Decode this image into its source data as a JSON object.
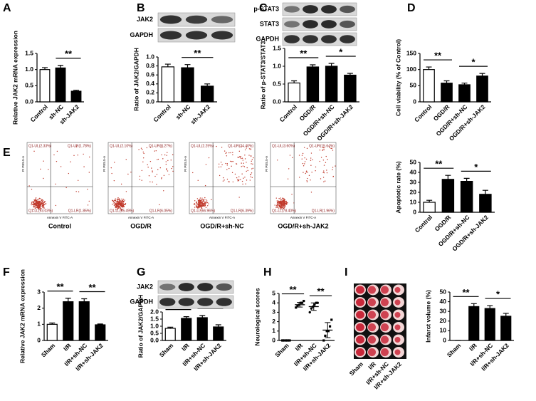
{
  "chart_data": [
    {
      "type": "bar",
      "panel": "A",
      "ylabel": "Relative JAK2 mRNA expression",
      "categories": [
        "Control",
        "sh-NC",
        "sh-JAK2"
      ],
      "values": [
        1.0,
        1.05,
        0.33
      ],
      "errors": [
        0.06,
        0.08,
        0.03
      ],
      "colors": [
        "#ffffff",
        "#000000",
        "#000000"
      ],
      "ylim": [
        0,
        1.5
      ],
      "yticks": [
        {
          "value": 0,
          "label": "0.0"
        },
        {
          "value": 0.5,
          "label": "0.5"
        },
        {
          "value": 1,
          "label": "1.0"
        },
        {
          "value": 1.5,
          "label": "1.5"
        }
      ],
      "significance": [
        {
          "label": "**",
          "between": [
            "sh-NC",
            "sh-JAK2"
          ]
        }
      ]
    },
    {
      "type": "bar",
      "panel": "B",
      "ylabel": "Ratio of JAK2/GAPDH",
      "categories": [
        "Control",
        "sh-NC",
        "sh-JAK2"
      ],
      "values": [
        0.78,
        0.76,
        0.35
      ],
      "errors": [
        0.06,
        0.07,
        0.05
      ],
      "colors": [
        "#ffffff",
        "#000000",
        "#000000"
      ],
      "ylim": [
        0,
        1
      ],
      "yticks": [
        {
          "value": 0,
          "label": "0.0"
        },
        {
          "value": 0.2,
          "label": "0.2"
        },
        {
          "value": 0.4,
          "label": "0.4"
        },
        {
          "value": 0.6,
          "label": "0.6"
        },
        {
          "value": 0.8,
          "label": "0.8"
        },
        {
          "value": 1,
          "label": "1.0"
        }
      ],
      "significance": [
        {
          "label": "**",
          "between": [
            "sh-NC",
            "sh-JAK2"
          ]
        }
      ]
    },
    {
      "type": "bar",
      "panel": "C",
      "ylabel": "Ratio of p-STAT3/STAT3",
      "categories": [
        "Control",
        "OGD/R",
        "OGD/R+sh-NC",
        "OGD/R+sh-JAK2"
      ],
      "values": [
        0.53,
        0.98,
        1.0,
        0.75
      ],
      "errors": [
        0.06,
        0.06,
        0.08,
        0.05
      ],
      "colors": [
        "#ffffff",
        "#000000",
        "#000000",
        "#000000"
      ],
      "ylim": [
        0,
        1.5
      ],
      "yticks": [
        {
          "value": 0,
          "label": "0.0"
        },
        {
          "value": 0.5,
          "label": "0.5"
        },
        {
          "value": 1,
          "label": "1.0"
        },
        {
          "value": 1.5,
          "label": "1.5"
        }
      ],
      "significance": [
        {
          "label": "**",
          "between": [
            "Control",
            "OGD/R"
          ]
        },
        {
          "label": "*",
          "between": [
            "OGD/R+sh-NC",
            "OGD/R+sh-JAK2"
          ]
        }
      ]
    },
    {
      "type": "bar",
      "panel": "D",
      "ylabel": "Cell viability (% of Control)",
      "categories": [
        "Control",
        "OGD/R",
        "OGD/R+sh-NC",
        "OGD/R+sh-JAK2"
      ],
      "values": [
        100,
        58,
        53,
        80
      ],
      "errors": [
        8,
        7,
        5,
        8
      ],
      "colors": [
        "#ffffff",
        "#000000",
        "#000000",
        "#000000"
      ],
      "ylim": [
        0,
        150
      ],
      "yticks": [
        0,
        50,
        100,
        150
      ],
      "significance": [
        {
          "label": "**",
          "between": [
            "Control",
            "OGD/R"
          ]
        },
        {
          "label": "*",
          "between": [
            "OGD/R+sh-NC",
            "OGD/R+sh-JAK2"
          ]
        }
      ]
    },
    {
      "type": "bar",
      "panel": "E",
      "ylabel": "Apoptotic rate (%)",
      "categories": [
        "Control",
        "OGD/R",
        "OGD/R+sh-NC",
        "OGD/R+sh-JAK2"
      ],
      "values": [
        10,
        33,
        31,
        18
      ],
      "errors": [
        2,
        4,
        3,
        4
      ],
      "colors": [
        "#ffffff",
        "#000000",
        "#000000",
        "#000000"
      ],
      "ylim": [
        0,
        50
      ],
      "yticks": [
        0,
        10,
        20,
        30,
        40,
        50
      ],
      "significance": [
        {
          "label": "**",
          "between": [
            "Control",
            "OGD/R"
          ]
        },
        {
          "label": "*",
          "between": [
            "OGD/R+sh-NC",
            "OGD/R+sh-JAK2"
          ]
        }
      ]
    },
    {
      "type": "bar",
      "panel": "F",
      "ylabel": "Relative JAK2 mRNA expression",
      "categories": [
        "Sham",
        "I/R",
        "I/R+sh-NC",
        "I/R+sh-JAK2"
      ],
      "values": [
        1.0,
        2.4,
        2.4,
        0.97
      ],
      "errors": [
        0.08,
        0.22,
        0.18,
        0.05
      ],
      "colors": [
        "#ffffff",
        "#000000",
        "#000000",
        "#000000"
      ],
      "ylim": [
        0,
        3
      ],
      "yticks": [
        0,
        1,
        2,
        3
      ],
      "significance": [
        {
          "label": "**",
          "between": [
            "Sham",
            "I/R"
          ]
        },
        {
          "label": "**",
          "between": [
            "I/R+sh-NC",
            "I/R+sh-JAK2"
          ]
        }
      ]
    },
    {
      "type": "bar",
      "panel": "G",
      "ylabel": "Ratio of JAK2/GAPDH",
      "categories": [
        "Sham",
        "I/R",
        "I/R+sh-NC",
        "I/R+sh-JAK2"
      ],
      "values": [
        0.85,
        1.55,
        1.6,
        0.95
      ],
      "errors": [
        0.08,
        0.12,
        0.15,
        0.15
      ],
      "colors": [
        "#ffffff",
        "#000000",
        "#000000",
        "#000000"
      ],
      "ylim": [
        0,
        2
      ],
      "yticks": [
        {
          "value": 0,
          "label": "0.0"
        },
        {
          "value": 0.5,
          "label": "0.5"
        },
        {
          "value": 1,
          "label": "1.0"
        },
        {
          "value": 1.5,
          "label": "1.5"
        },
        {
          "value": 2,
          "label": "2.0"
        }
      ],
      "significance": [
        {
          "label": "**",
          "between": [
            "Sham",
            "I/R"
          ]
        },
        {
          "label": "**",
          "between": [
            "I/R+sh-NC",
            "I/R+sh-JAK2"
          ]
        }
      ]
    },
    {
      "type": "dot",
      "panel": "H",
      "ylabel": "Neurological scores",
      "categories": [
        "Sham",
        "I/R",
        "I/R+sh-NC",
        "I/R+sh-JAK2"
      ],
      "values": [
        0,
        3.8,
        3.6,
        1.1
      ],
      "errors": [
        0,
        0.25,
        0.4,
        0.8
      ],
      "points": [
        [
          0,
          0,
          0,
          0,
          0,
          0
        ],
        [
          3.5,
          3.7,
          3.8,
          4,
          4,
          4.2
        ],
        [
          3,
          3.4,
          3.6,
          3.8,
          4,
          4
        ],
        [
          0,
          0.5,
          1,
          1,
          1.5,
          2.2
        ]
      ],
      "ylim": [
        0,
        5
      ],
      "yticks": [
        0,
        1,
        2,
        3,
        4,
        5
      ],
      "significance": [
        {
          "label": "**",
          "between": [
            "Sham",
            "I/R"
          ]
        },
        {
          "label": "**",
          "between": [
            "I/R+sh-NC",
            "I/R+sh-JAK2"
          ]
        }
      ]
    },
    {
      "type": "bar",
      "panel": "I",
      "ylabel": "Infarct volume (%)",
      "categories": [
        "Sham",
        "I/R",
        "I/R+sh-NC",
        "I/R+sh-JAK2"
      ],
      "values": [
        0,
        35,
        33,
        25
      ],
      "errors": [
        0,
        3,
        3,
        3
      ],
      "colors": [
        "#ffffff",
        "#000000",
        "#000000",
        "#000000"
      ],
      "ylim": [
        0,
        50
      ],
      "yticks": [
        0,
        10,
        20,
        30,
        40,
        50
      ],
      "significance": [
        {
          "label": "**",
          "between": [
            "Sham",
            "I/R"
          ]
        },
        {
          "label": "*",
          "between": [
            "I/R+sh-NC",
            "I/R+sh-JAK2"
          ]
        }
      ]
    }
  ],
  "blots": [
    {
      "panel": "B",
      "labels": [
        "JAK2",
        "GAPDH"
      ]
    },
    {
      "panel": "C",
      "labels": [
        "p-STAT3",
        "STAT3",
        "GAPDH"
      ]
    },
    {
      "panel": "G",
      "labels": [
        "JAK2",
        "GAPDH"
      ]
    }
  ],
  "flow": {
    "x_label": "Annexin V FITC-A",
    "y_label": "PI PE5.5-A",
    "panels": [
      {
        "label": "Control",
        "quadrants": [
          "Q1-UL(2.33%)",
          "Q1-UR(1.78%)",
          "Q1-LL(93.03%)",
          "Q1-LR(1.85%)"
        ]
      },
      {
        "label": "OGD/R",
        "quadrants": [
          "Q1-UL(2.10%)",
          "Q1-UR(8.27%)",
          "Q1-LL(85.49%)",
          "Q1-LR(6.05%)"
        ]
      },
      {
        "label": "OGD/R+sh-NC",
        "quadrants": [
          "Q1-UL(2.25%)",
          "Q1-UR(24.40%)",
          "Q1-LL(66.96%)",
          "Q1-LR(6.39%)"
        ]
      },
      {
        "label": "OGD/R+sh-JAK2",
        "quadrants": [
          "Q1-UL(3.60%)",
          "Q1-UR(15.64%)",
          "Q1-LL(78.40%)",
          "Q1-LR(1.96%)"
        ]
      }
    ]
  },
  "brain_labels": [
    "Sham",
    "I/R",
    "I/R+sh-NC",
    "I/R+sh-JAK2"
  ]
}
